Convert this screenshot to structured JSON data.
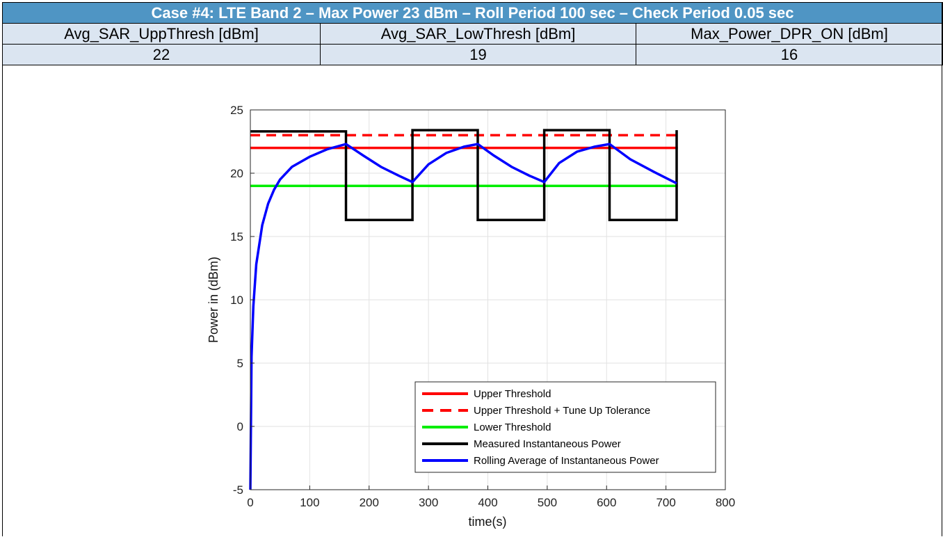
{
  "table": {
    "title": "Case #4: LTE Band 2 – Max Power 23 dBm – Roll Period 100 sec – Check Period 0.05 sec",
    "headers": [
      "Avg_SAR_UppThresh [dBm]",
      "Avg_SAR_LowThresh [dBm]",
      "Max_Power_DPR_ON [dBm]"
    ],
    "values": [
      "22",
      "19",
      "16"
    ]
  },
  "chart_data": {
    "type": "line",
    "title": "",
    "xlabel": "time(s)",
    "ylabel": "Power in (dBm)",
    "xlim": [
      0,
      800
    ],
    "ylim": [
      -5,
      25
    ],
    "xticks": [
      0,
      100,
      200,
      300,
      400,
      500,
      600,
      700,
      800
    ],
    "yticks": [
      -5,
      0,
      5,
      10,
      15,
      20,
      25
    ],
    "grid": true,
    "legend_position": "bottom-right",
    "series": [
      {
        "name": "Upper Threshold",
        "color": "#ff0000",
        "style": "solid",
        "x": [
          0,
          720
        ],
        "y": [
          22,
          22
        ]
      },
      {
        "name": "Upper Threshold + Tune Up Tolerance",
        "color": "#ff0000",
        "style": "dashed",
        "x": [
          0,
          720
        ],
        "y": [
          23,
          23
        ]
      },
      {
        "name": "Lower Threshold",
        "color": "#00ee00",
        "style": "solid",
        "x": [
          0,
          720
        ],
        "y": [
          19,
          19
        ]
      },
      {
        "name": "Measured Instantaneous Power",
        "color": "#000000",
        "style": "solid",
        "x": [
          0,
          161,
          161,
          273,
          273,
          383,
          383,
          495,
          495,
          605,
          605,
          718,
          718
        ],
        "y": [
          23.3,
          23.3,
          16.3,
          16.3,
          23.4,
          23.4,
          16.3,
          16.3,
          23.4,
          23.4,
          16.3,
          16.3,
          23.4
        ]
      },
      {
        "name": "Rolling Average of Instantaneous Power",
        "color": "#0000ff",
        "style": "solid",
        "x": [
          0,
          2,
          5,
          10,
          20,
          30,
          40,
          50,
          70,
          100,
          130,
          161,
          190,
          220,
          250,
          273,
          300,
          330,
          360,
          383,
          410,
          440,
          470,
          495,
          520,
          550,
          580,
          605,
          640,
          680,
          718
        ],
        "y": [
          -5,
          5.5,
          9.5,
          12.8,
          15.9,
          17.6,
          18.7,
          19.5,
          20.5,
          21.3,
          21.9,
          22.3,
          21.4,
          20.5,
          19.8,
          19.3,
          20.7,
          21.6,
          22.1,
          22.3,
          21.4,
          20.5,
          19.8,
          19.3,
          20.8,
          21.7,
          22.1,
          22.3,
          21.1,
          20.1,
          19.2
        ]
      }
    ]
  }
}
